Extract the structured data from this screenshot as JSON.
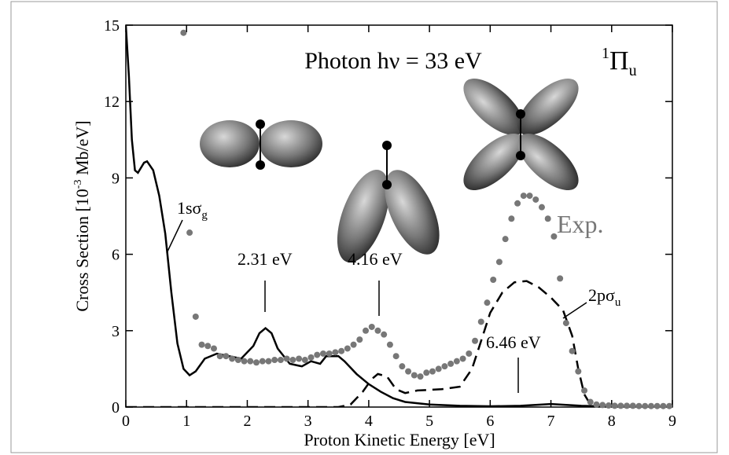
{
  "chart_data": {
    "type": "line",
    "title": "Photon hν = 33 eV",
    "state": {
      "sup": "1",
      "main": "Π",
      "sub": "u"
    },
    "x_label": "Proton Kinetic Energy [eV]",
    "y_label": {
      "before": "Cross Section [10",
      "sup": "-3",
      "after": " Mb/eV]"
    },
    "xlim": [
      0,
      9
    ],
    "ylim": [
      0,
      15
    ],
    "xticks": [
      0,
      1,
      2,
      3,
      4,
      5,
      6,
      7,
      8,
      9
    ],
    "yticks": [
      0,
      3,
      6,
      9,
      12,
      15
    ],
    "series": [
      {
        "style": "solid",
        "color": "#000000",
        "x": [
          0,
          0.05,
          0.1,
          0.15,
          0.2,
          0.3,
          0.35,
          0.45,
          0.55,
          0.65,
          0.75,
          0.85,
          0.95,
          1.05,
          1.15,
          1.3,
          1.5,
          1.7,
          1.9,
          2.1,
          2.2,
          2.3,
          2.4,
          2.5,
          2.7,
          2.9,
          3.05,
          3.2,
          3.3,
          3.5,
          3.6,
          3.8,
          4.0,
          4.2,
          4.4,
          4.6,
          5.0,
          5.5,
          6.0,
          6.5,
          7.0,
          7.5,
          8.0,
          9.0
        ],
        "values": [
          15,
          13,
          10.5,
          9.3,
          9.2,
          9.6,
          9.65,
          9.3,
          8.3,
          6.8,
          4.5,
          2.5,
          1.5,
          1.25,
          1.4,
          1.9,
          2.1,
          2.0,
          1.9,
          2.4,
          2.9,
          3.1,
          2.9,
          2.3,
          1.7,
          1.6,
          1.8,
          1.7,
          2.0,
          2.0,
          1.8,
          1.3,
          0.9,
          0.6,
          0.35,
          0.2,
          0.1,
          0.05,
          0.03,
          0.05,
          0.12,
          0.05,
          0.02,
          0.01
        ]
      },
      {
        "style": "dashed",
        "color": "#000000",
        "x": [
          0,
          3.5,
          3.7,
          3.9,
          4.05,
          4.15,
          4.3,
          4.45,
          4.6,
          4.8,
          5.2,
          5.5,
          5.7,
          5.85,
          6.0,
          6.2,
          6.4,
          6.6,
          6.8,
          7.0,
          7.2,
          7.35,
          7.45,
          7.55,
          7.65,
          7.8,
          9.0
        ],
        "values": [
          0,
          0,
          0.1,
          0.6,
          1.1,
          1.3,
          1.2,
          0.7,
          0.55,
          0.65,
          0.7,
          0.8,
          1.5,
          2.6,
          3.7,
          4.5,
          4.9,
          4.95,
          4.7,
          4.3,
          3.8,
          2.8,
          1.5,
          0.5,
          0.1,
          0,
          0
        ]
      },
      {
        "style": "dots",
        "color": "#777777",
        "x": [
          0.95,
          1.05,
          1.15,
          1.25,
          1.35,
          1.45,
          1.55,
          1.65,
          1.75,
          1.85,
          1.95,
          2.05,
          2.15,
          2.25,
          2.35,
          2.45,
          2.55,
          2.65,
          2.75,
          2.85,
          2.95,
          3.05,
          3.15,
          3.25,
          3.35,
          3.45,
          3.55,
          3.65,
          3.75,
          3.85,
          3.95,
          4.05,
          4.15,
          4.25,
          4.35,
          4.45,
          4.55,
          4.65,
          4.75,
          4.85,
          4.95,
          5.05,
          5.15,
          5.25,
          5.35,
          5.45,
          5.55,
          5.65,
          5.75,
          5.85,
          5.95,
          6.05,
          6.15,
          6.25,
          6.35,
          6.45,
          6.55,
          6.65,
          6.75,
          6.85,
          6.95,
          7.05,
          7.15,
          7.25,
          7.35,
          7.45,
          7.55,
          7.65,
          7.75,
          7.85,
          7.95,
          8.05,
          8.15,
          8.25,
          8.35,
          8.45,
          8.55,
          8.65,
          8.75,
          8.85,
          8.95
        ],
        "values": [
          14.7,
          6.85,
          3.55,
          2.45,
          2.4,
          2.3,
          2.0,
          2.0,
          1.9,
          1.85,
          1.8,
          1.8,
          1.75,
          1.8,
          1.8,
          1.85,
          1.85,
          1.9,
          1.85,
          1.9,
          1.85,
          1.95,
          2.05,
          2.1,
          2.1,
          2.15,
          2.2,
          2.3,
          2.45,
          2.65,
          3.0,
          3.15,
          3.0,
          2.85,
          2.45,
          2.0,
          1.6,
          1.4,
          1.25,
          1.2,
          1.35,
          1.4,
          1.5,
          1.6,
          1.7,
          1.8,
          1.9,
          2.1,
          2.6,
          3.35,
          4.1,
          5.0,
          5.7,
          6.6,
          7.4,
          8.0,
          8.3,
          8.3,
          8.15,
          7.85,
          7.4,
          6.7,
          5.05,
          3.3,
          2.2,
          1.4,
          0.65,
          0.2,
          0.1,
          0.08,
          0.06,
          0.05,
          0.05,
          0.05,
          0.05,
          0.04,
          0.04,
          0.04,
          0.04,
          0.04,
          0.04
        ]
      }
    ],
    "annotations": [
      {
        "text": "1sσ",
        "sub": "g"
      },
      {
        "text": "2.31 eV"
      },
      {
        "text": "4.16 eV"
      },
      {
        "text": "6.46 eV"
      },
      {
        "text": "2pσ",
        "sub": "u"
      },
      {
        "text": "Exp."
      }
    ]
  }
}
